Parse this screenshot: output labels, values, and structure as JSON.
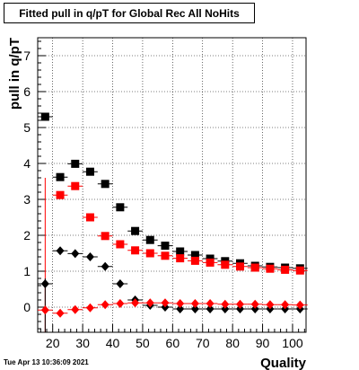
{
  "chart_data": {
    "type": "scatter",
    "title": "Fitted pull in q/pT for Global Rec All NoHits",
    "xlabel": "Quality",
    "ylabel": "pull in q/pT",
    "xlim": [
      15.0,
      104.5
    ],
    "ylim": [
      -0.7,
      7.5
    ],
    "x_ticks": [
      20,
      30,
      40,
      50,
      60,
      70,
      80,
      90,
      100
    ],
    "y_ticks": [
      0,
      1,
      2,
      3,
      4,
      5,
      6,
      7
    ],
    "grid": true,
    "legend": "none",
    "x": [
      17.5,
      22.5,
      27.5,
      32.5,
      37.5,
      42.5,
      47.5,
      52.5,
      57.5,
      62.5,
      67.5,
      72.5,
      77.5,
      82.5,
      87.5,
      92.5,
      97.5,
      102.5
    ],
    "series": [
      {
        "color": "#000000",
        "marker": "square",
        "values": [
          5.3,
          3.62,
          3.99,
          3.77,
          3.43,
          2.78,
          2.12,
          1.87,
          1.71,
          1.55,
          1.45,
          1.35,
          1.28,
          1.22,
          1.15,
          1.12,
          1.1,
          1.08
        ]
      },
      {
        "color": "#ff0000",
        "marker": "square",
        "values": [
          null,
          3.12,
          3.37,
          2.5,
          1.98,
          1.75,
          1.58,
          1.5,
          1.43,
          1.36,
          1.29,
          1.24,
          1.18,
          1.13,
          1.1,
          1.07,
          1.04,
          1.02
        ]
      },
      {
        "color": "#000000",
        "marker": "diamond",
        "values": [
          0.65,
          1.57,
          1.49,
          1.4,
          1.13,
          0.65,
          0.2,
          0.05,
          0.0,
          -0.05,
          -0.05,
          -0.05,
          -0.05,
          -0.05,
          -0.05,
          -0.05,
          -0.05,
          -0.05
        ]
      },
      {
        "color": "#ff0000",
        "marker": "diamond",
        "values": [
          -0.08,
          -0.17,
          -0.07,
          -0.02,
          0.07,
          0.1,
          0.12,
          0.12,
          0.12,
          0.1,
          0.1,
          0.1,
          0.08,
          0.08,
          0.08,
          0.07,
          0.07,
          0.06
        ]
      }
    ]
  },
  "timestamp": "Tue Apr 13 10:36:09 2021"
}
